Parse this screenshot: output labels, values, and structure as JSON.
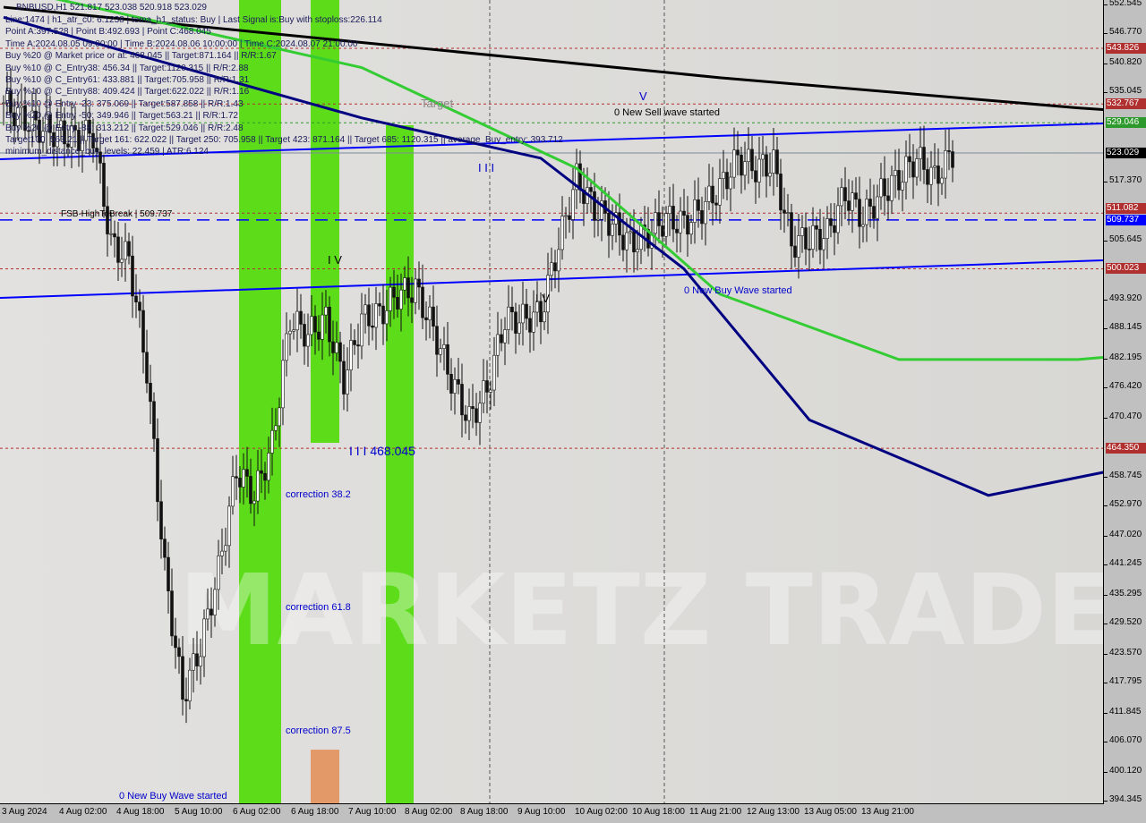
{
  "header": {
    "symbol_line": "BNBUSD,H1  521.817 523.038 520.918 523.029",
    "info_lines": [
      "Line:1474 | h1_atr_c0: 6.1238 | tema_h1_status: Buy | Last Signal is:Buy with stoploss:226.114",
      "Point A:397.528 | Point B:492.693 | Point C:468.045",
      "Time A:2024.08.05 09:00:00 | Time B:2024.08.06 10:00:00 | Time C:2024.08.07 21:00:00",
      "Buy %20 @ Market price or at: 468.045 || Target:871.164 || R/R:1.67",
      "Buy %10 @ C_Entry38: 456.34 || Target:1120.315 || R/R:2.88",
      "Buy %10 @ C_Entry61: 433.881 || Target:705.958 || R/R:1.31",
      "Buy %10 @ C_Entry88: 409.424 || Target:622.022 || R/R:1.16",
      "Buy %10 @ Entry -23: 375.069 || Target:587.858 || R/R:1.43",
      "Buy %20 @ Entry -50: 349.946 || Target:563.21 || R/R:1.72",
      "Buy %20 @ Entry -88: 313.212 || Target:529.046 || R/R:2.48",
      "Target100: 563.21 || Target 161: 622.022 || Target 250: 705.958 || Target 423: 871.164 || Target 685: 1120.315 || average_Buy_entry: 393.712",
      "minimum_distance_buy_levels: 22.459 | ATR:6.124"
    ]
  },
  "annotations": {
    "sell_wave": "0 New Sell wave started",
    "buy_wave_1": "0 New Buy Wave started",
    "buy_wave_2": "0 New Buy Wave started",
    "corr38": "correction 38.2",
    "corr61": "correction 61.8",
    "corr87": "correction 87.5",
    "fsb": "FSB-HighToBreak | 509.737",
    "wave_iv_1": "I V",
    "wave_iv_2": "I V",
    "wave_iii_1": "I I I 468.045",
    "wave_iii_2": "I I I",
    "wave_v": "V",
    "target_tag": "Target",
    "watermark": "MARKETZ TRADE"
  },
  "chart_data": {
    "type": "candlestick",
    "symbol": "BNBUSD",
    "timeframe": "H1",
    "ylim": [
      394.345,
      552.545
    ],
    "y_ticks": [
      "552.545",
      "546.770",
      "540.820",
      "535.045",
      "517.370",
      "505.645",
      "493.920",
      "488.145",
      "482.195",
      "476.420",
      "470.470",
      "458.745",
      "452.970",
      "447.020",
      "441.245",
      "435.295",
      "429.520",
      "423.570",
      "417.795",
      "411.845",
      "406.070",
      "400.120",
      "394.345"
    ],
    "x_ticks": [
      "3 Aug 2024",
      "4 Aug 02:00",
      "4 Aug 18:00",
      "5 Aug 10:00",
      "6 Aug 02:00",
      "6 Aug 18:00",
      "7 Aug 10:00",
      "8 Aug 02:00",
      "8 Aug 18:00",
      "9 Aug 10:00",
      "10 Aug 02:00",
      "10 Aug 18:00",
      "11 Aug 21:00",
      "12 Aug 13:00",
      "13 Aug 05:00",
      "13 Aug 21:00"
    ],
    "closes_sampled_every_5_bars": [
      533,
      530,
      528,
      527,
      526,
      527,
      505,
      502,
      480,
      440,
      415,
      425,
      440,
      460,
      455,
      465,
      490,
      487,
      490,
      478,
      490,
      491,
      495,
      496,
      488,
      478,
      470,
      476,
      490,
      490,
      491,
      505,
      518,
      512,
      509,
      505,
      507,
      510,
      509,
      512,
      516,
      522,
      520,
      521,
      505,
      506,
      507,
      515,
      510,
      515,
      518,
      522,
      518,
      523
    ],
    "price_levels": [
      {
        "value": 543.826,
        "label": "543.826",
        "color": "#b03030",
        "style": "dotted"
      },
      {
        "value": 532.767,
        "label": "532.767",
        "color": "#b03030",
        "style": "dotted"
      },
      {
        "value": 529.046,
        "label": "529.046",
        "color": "#2e9a2e",
        "style": "dotted"
      },
      {
        "value": 523.029,
        "label": "523.029",
        "color": "#000000",
        "style": "solid"
      },
      {
        "value": 511.082,
        "label": "511.082",
        "color": "#b03030",
        "style": "dotted"
      },
      {
        "value": 509.737,
        "label": "509.737",
        "color": "#0000ff",
        "style": "dashed"
      },
      {
        "value": 500.023,
        "label": "500.023",
        "color": "#b03030",
        "style": "dotted"
      },
      {
        "value": 464.35,
        "label": "464.350",
        "color": "#b03030",
        "style": "dotted"
      }
    ],
    "moving_averages": [
      {
        "color": "#000000",
        "points": [
          [
            0,
            552
          ],
          [
            20,
            545
          ],
          [
            40,
            538
          ],
          [
            60,
            532
          ],
          [
            80,
            527
          ],
          [
            100,
            522
          ],
          [
            110,
            518
          ],
          [
            120,
            514
          ],
          [
            130,
            511
          ],
          [
            140,
            511
          ],
          [
            160,
            511
          ],
          [
            175,
            512
          ],
          [
            185,
            513.5
          ]
        ]
      },
      {
        "color": "#33cc33",
        "points": [
          [
            0,
            556
          ],
          [
            20,
            540
          ],
          [
            32,
            520
          ],
          [
            40,
            495
          ],
          [
            50,
            482
          ],
          [
            60,
            482
          ],
          [
            70,
            485
          ],
          [
            80,
            487
          ],
          [
            90,
            488
          ],
          [
            100,
            490
          ],
          [
            110,
            495
          ],
          [
            120,
            502
          ],
          [
            130,
            505
          ],
          [
            140,
            507
          ],
          [
            150,
            509
          ],
          [
            160,
            510
          ],
          [
            170,
            512
          ],
          [
            180,
            514
          ],
          [
            188,
            516
          ]
        ]
      },
      {
        "color": "#000080",
        "points": [
          [
            0,
            550
          ],
          [
            10,
            540
          ],
          [
            20,
            530
          ],
          [
            30,
            522
          ],
          [
            38,
            500
          ],
          [
            45,
            470
          ],
          [
            55,
            455
          ],
          [
            62,
            460
          ],
          [
            70,
            472
          ],
          [
            80,
            480
          ],
          [
            90,
            490
          ],
          [
            100,
            492
          ],
          [
            105,
            486
          ],
          [
            115,
            482
          ],
          [
            125,
            490
          ],
          [
            130,
            500
          ],
          [
            135,
            510
          ],
          [
            145,
            508
          ],
          [
            155,
            510
          ],
          [
            165,
            513
          ],
          [
            175,
            518
          ],
          [
            185,
            522
          ],
          [
            195,
            512
          ],
          [
            205,
            510
          ],
          [
            215,
            514
          ],
          [
            225,
            518
          ],
          [
            235,
            520
          ],
          [
            242,
            520
          ]
        ]
      }
    ],
    "colors": {
      "up_candle": "#1a1a1a",
      "down_candle": "#1a1a1a",
      "band_green": "#5ddc1a",
      "band_orange": "#e39a68",
      "trend": "#0000ff"
    }
  }
}
